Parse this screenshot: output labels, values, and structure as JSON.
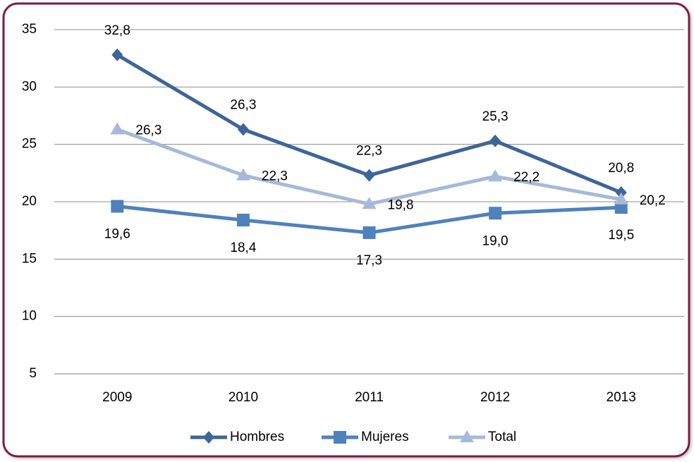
{
  "chart_data": {
    "type": "line",
    "categories": [
      "2009",
      "2010",
      "2011",
      "2012",
      "2013"
    ],
    "series": [
      {
        "name": "Hombres",
        "color": "#3e6597",
        "marker": "diamond",
        "values": [
          32.8,
          26.3,
          22.3,
          25.3,
          20.8
        ],
        "value_labels": [
          "32,8",
          "26,3",
          "22,3",
          "25,3",
          "20,8"
        ]
      },
      {
        "name": "Mujeres",
        "color": "#4f81bd",
        "marker": "square",
        "values": [
          19.6,
          18.4,
          17.3,
          19.0,
          19.5
        ],
        "value_labels": [
          "19,6",
          "18,4",
          "17,3",
          "19,0",
          "19,5"
        ]
      },
      {
        "name": "Total",
        "color": "#a7b9d8",
        "marker": "triangle",
        "values": [
          26.3,
          22.3,
          19.8,
          22.2,
          20.2
        ],
        "value_labels": [
          "26,3",
          "22,3",
          "19,8",
          "22,2",
          "20,2"
        ]
      }
    ],
    "ylim": [
      5,
      35
    ],
    "yticks": [
      5,
      10,
      15,
      20,
      25,
      30,
      35
    ],
    "grid": true,
    "legend": "bottom"
  }
}
